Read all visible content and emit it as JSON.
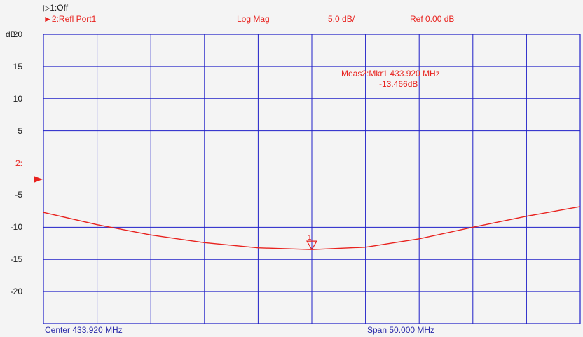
{
  "header": {
    "trace1_label": "1:Off",
    "trace2_label": "2:Refl Port1",
    "format": "Log Mag",
    "scale": "5.0 dB/",
    "reference": "Ref  0.00 dB"
  },
  "marker_readout": {
    "line1": "Meas2:Mkr1  433.920 MHz",
    "line2": "-13.466dB"
  },
  "footer": {
    "center": "Center 433.920 MHz",
    "span": "Span 50.000 MHz"
  },
  "y_unit": "dB",
  "ref_position_label": "2:",
  "colors": {
    "trace": "#e8221e",
    "grid": "#2020c8",
    "text_red": "#e8221e",
    "background": "#f4f4f4"
  },
  "chart_data": {
    "type": "line",
    "title": "",
    "xlabel": "",
    "ylabel": "dB",
    "ylim": [
      -25,
      20
    ],
    "xlim": [
      408.92,
      458.92
    ],
    "x_divisions": 10,
    "y_tick_labels": [
      "20",
      "15",
      "10",
      "5",
      "2:",
      "-5",
      "-10",
      "-15",
      "-20"
    ],
    "grid": true,
    "series": [
      {
        "x": [
          408.92,
          413.92,
          418.92,
          423.92,
          428.92,
          433.92,
          438.92,
          443.92,
          448.92,
          453.92,
          458.92
        ],
        "y": [
          -7.7,
          -9.6,
          -11.2,
          -12.4,
          -13.2,
          -13.47,
          -13.1,
          -11.8,
          -10.0,
          -8.3,
          -6.8
        ]
      }
    ],
    "markers": [
      {
        "label": "1",
        "x": 433.92,
        "y": -13.466
      }
    ]
  }
}
